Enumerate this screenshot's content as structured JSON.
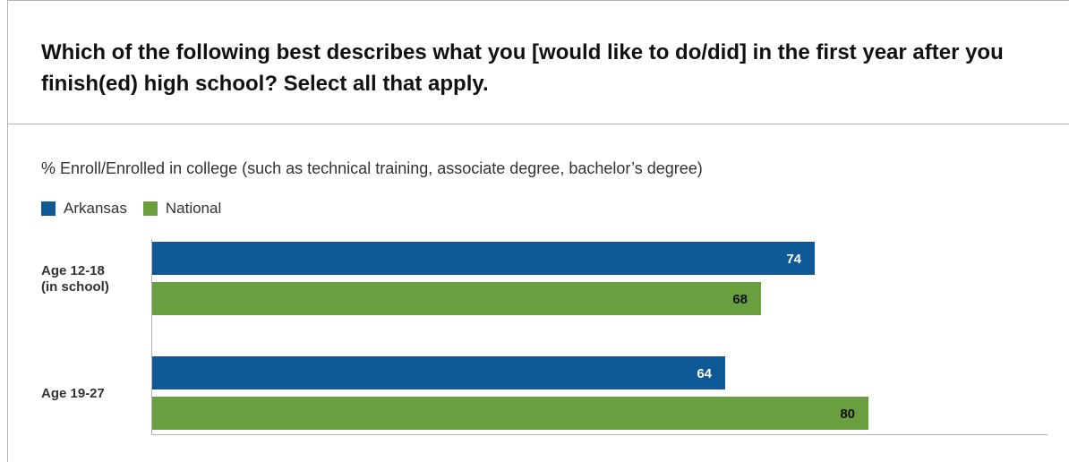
{
  "title": "Which of the following best describes what you [would like to do/did] in the first year after you finish(ed) high school? Select all that apply.",
  "colors": {
    "arkansas": "#0f5a96",
    "national": "#6a9f40"
  },
  "chart_data": {
    "type": "bar",
    "orientation": "horizontal",
    "subtitle": "% Enroll/Enrolled in college (such as technical training, associate degree, bachelor’s degree)",
    "categories": [
      [
        "Age 12-18",
        "(in school)"
      ],
      [
        "Age 19-27"
      ]
    ],
    "series": [
      {
        "name": "Arkansas",
        "color": "#0f5a96",
        "label_color": "#ffffff",
        "values": [
          74,
          64
        ]
      },
      {
        "name": "National",
        "color": "#6a9f40",
        "label_color": "#111111",
        "values": [
          68,
          80
        ]
      }
    ],
    "xlim": [
      0,
      100
    ],
    "grid": false,
    "legend": "top-left"
  }
}
